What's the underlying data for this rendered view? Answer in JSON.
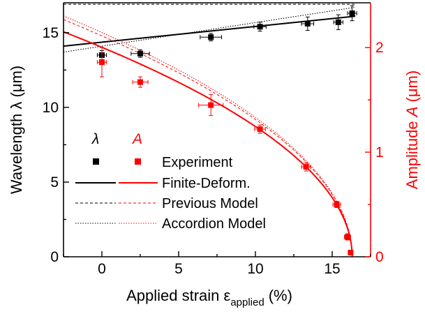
{
  "chart_data": {
    "type": "scatter",
    "xlabel_main": "Applied strain ε",
    "xlabel_sub": "applied",
    "xlabel_unit": "(%)",
    "ylabel_left": "Wavelength λ (μm)",
    "ylabel_right_prefix": "Amplitude ",
    "ylabel_right_var": "A",
    "ylabel_right_suffix": " (μm)",
    "xlim": [
      -2.5,
      17.5
    ],
    "ylim_left": [
      0,
      17
    ],
    "ylim_right": [
      0,
      2.428
    ],
    "x_ticks": [
      "0",
      "5",
      "10",
      "15"
    ],
    "y_left_ticks": [
      "0",
      "5",
      "10",
      "15"
    ],
    "y_right_ticks": [
      "0",
      "1",
      "2"
    ],
    "colors": {
      "wavelength": "#000000",
      "amplitude": "#ff0000"
    },
    "series": [
      {
        "name": "λ",
        "kind": "experiment",
        "axis": "left",
        "color": "#000000",
        "x": [
          0.0,
          2.5,
          7.1,
          10.3,
          13.4,
          15.4,
          16.3
        ],
        "y": [
          13.5,
          13.6,
          14.7,
          15.4,
          15.6,
          15.7,
          16.3
        ],
        "xerr": [
          0.3,
          0.6,
          0.7,
          0.4,
          0.4,
          0.3,
          0.3
        ],
        "yerr": [
          0.3,
          0.25,
          0.25,
          0.3,
          0.45,
          0.5,
          0.5
        ]
      },
      {
        "name": "A",
        "kind": "experiment",
        "axis": "right",
        "color": "#ff0000",
        "x": [
          0.0,
          2.5,
          7.1,
          10.3,
          13.3,
          15.3,
          16.0,
          16.2
        ],
        "y": [
          1.86,
          1.67,
          1.45,
          1.22,
          0.86,
          0.5,
          0.19,
          0.04
        ],
        "xerr": [
          0.3,
          0.5,
          0.8,
          0.35,
          0.3,
          0.25,
          0.2,
          0.1
        ],
        "yerr": [
          0.14,
          0.05,
          0.1,
          0.04,
          0.04,
          0.03,
          0.03,
          0.02
        ]
      }
    ],
    "models": {
      "wavelength_finite": {
        "x": [
          -2.5,
          16.5
        ],
        "y": [
          14.1,
          16.1
        ]
      },
      "wavelength_previous": {
        "x": [
          -2.5,
          16.5
        ],
        "y": [
          16.9,
          16.9
        ]
      },
      "wavelength_accordion": {
        "x": [
          -2.5,
          16.5
        ],
        "y": [
          13.7,
          16.7
        ]
      },
      "amplitude_onset_strain": 16.3,
      "amplitude_finite_coeff": 0.496,
      "amplitude_previous_coeff": 0.523,
      "amplitude_accordion_coeff": 0.531
    },
    "legend": {
      "placement": "bottom-center",
      "head_lambda": "λ",
      "head_A": "A",
      "entries": [
        "Experiment",
        "Finite-Deform.",
        "Previous Model",
        "Accordion Model"
      ]
    }
  }
}
